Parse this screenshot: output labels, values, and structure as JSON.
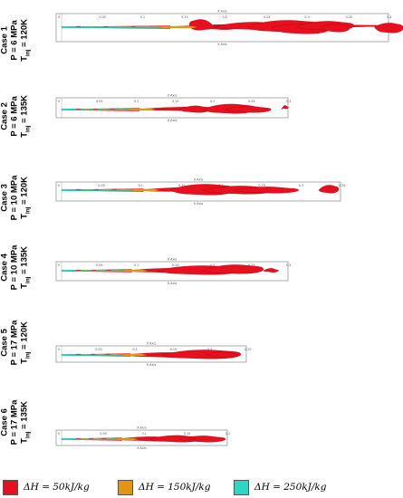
{
  "figure": {
    "cases": [
      {
        "label": "Case 1",
        "pressure": "P = 6 MPa",
        "tinj_prefix": "T",
        "tinj_sub": "inj",
        "tinj_value": " = 120K",
        "axis_top_label": "X Axis",
        "axis_bottom_label": "X Axis",
        "ticks": [
          "0",
          "0.05",
          "0.1",
          "0.15",
          "0.2",
          "0.25",
          "0.3",
          "0.35",
          "0.4"
        ],
        "x_max": 0.4
      },
      {
        "label": "Case 2",
        "pressure": "P = 6 MPa",
        "tinj_prefix": "T",
        "tinj_sub": "inj",
        "tinj_value": " = 135K",
        "axis_top_label": "X Axis",
        "axis_bottom_label": "X Axis",
        "ticks": [
          "0",
          "0.05",
          "0.1",
          "0.15",
          "0.2",
          "0.25",
          "0.3"
        ],
        "x_max": 0.3
      },
      {
        "label": "Case 3",
        "pressure": "P = 10 MPa",
        "tinj_prefix": "T",
        "tinj_sub": "inj",
        "tinj_value": " = 120K",
        "axis_top_label": "X Axis",
        "axis_bottom_label": "X Axis",
        "ticks": [
          "0",
          "0.05",
          "0.1",
          "0.15",
          "0.2",
          "0.25",
          "0.3",
          "0.35"
        ],
        "x_max": 0.35
      },
      {
        "label": "Case 4",
        "pressure": "P = 10 MPa",
        "tinj_prefix": "T",
        "tinj_sub": "inj",
        "tinj_value": " = 135K",
        "axis_top_label": "X Axis",
        "axis_bottom_label": "X Axis",
        "ticks": [
          "0",
          "0.05",
          "0.1",
          "0.15",
          "0.2",
          "0.25",
          "0.3"
        ],
        "x_max": 0.3
      },
      {
        "label": "Case 5",
        "pressure": "P = 17 MPa",
        "tinj_prefix": "T",
        "tinj_sub": "inj",
        "tinj_value": " = 120K",
        "axis_top_label": "X Axis",
        "axis_bottom_label": "X Axis",
        "ticks": [
          "0",
          "0.05",
          "0.1",
          "0.15",
          "0.2",
          "0.25"
        ],
        "x_max": 0.25
      },
      {
        "label": "Case 6",
        "pressure": "P = 17 MPa",
        "tinj_prefix": "T",
        "tinj_sub": "inj",
        "tinj_value": " = 135K",
        "axis_top_label": "X Axis",
        "axis_bottom_label": "X Axis",
        "ticks": [
          "0",
          "0.05",
          "0.1",
          "0.15",
          "0.2"
        ],
        "x_max": 0.2
      }
    ]
  },
  "legend": {
    "items": [
      {
        "text": "ΔH = 50kJ/kg",
        "color": "#e8101e"
      },
      {
        "text": "ΔH = 150kJ/kg",
        "color": "#e39412"
      },
      {
        "text": "ΔH = 250kJ/kg",
        "color": "#2ad8c4"
      }
    ]
  },
  "colors": {
    "iso_50": "#e8101e",
    "iso_50_dark": "#a80810",
    "iso_150": "#e39412",
    "iso_250": "#2ad8c4",
    "frame": "#777777"
  }
}
